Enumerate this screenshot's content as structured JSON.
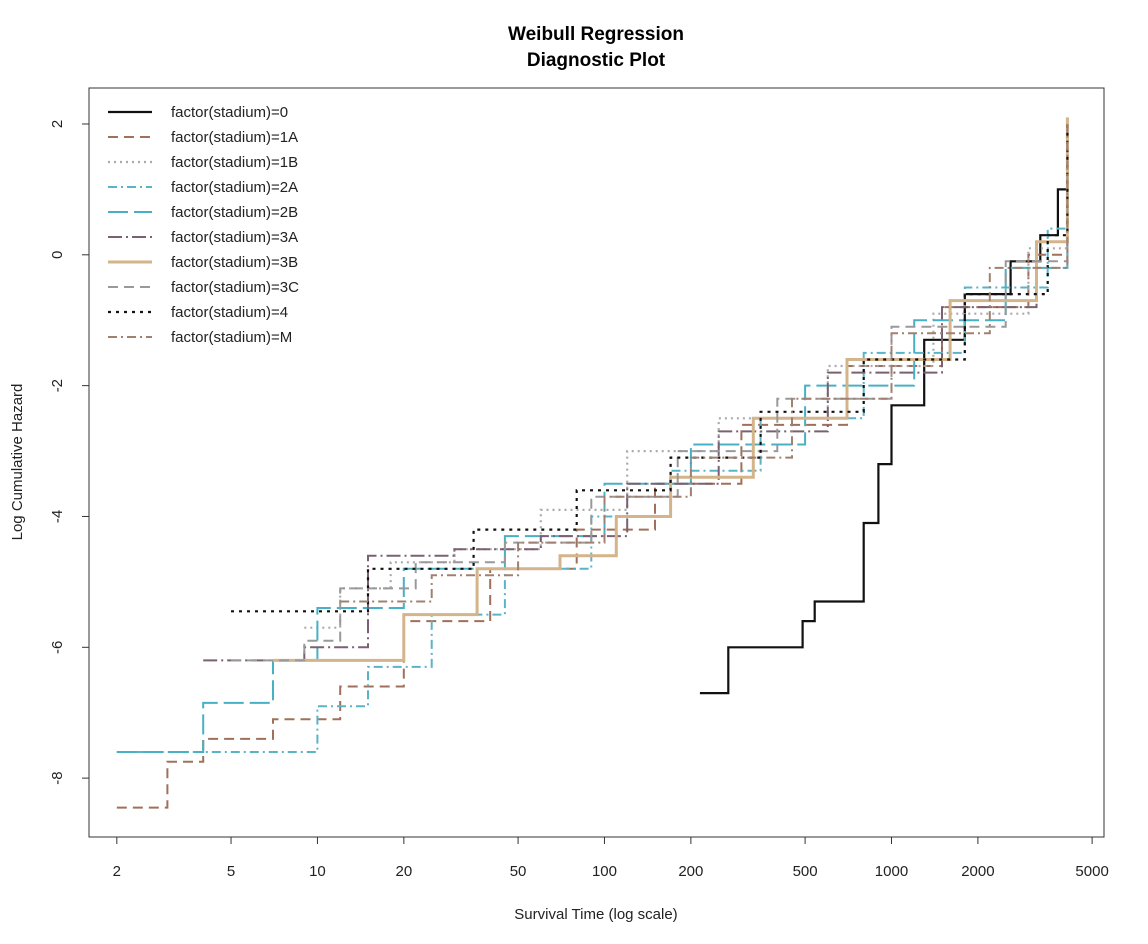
{
  "chart_data": {
    "type": "line",
    "title": "Weibull Regression",
    "subtitle": "Diagnostic Plot",
    "xlabel": "Survival Time (log scale)",
    "ylabel": "Log Cumulative Hazard",
    "xscale": "log",
    "xlim": [
      1.6,
      5500
    ],
    "ylim": [
      -8.9,
      2.55
    ],
    "xticks": [
      2,
      5,
      10,
      20,
      50,
      100,
      200,
      500,
      1000,
      2000,
      5000
    ],
    "xtick_labels": [
      "2",
      "5",
      "10",
      "20",
      "50",
      "100",
      "200",
      "500",
      "1000",
      "2000",
      "5000"
    ],
    "yticks": [
      -8,
      -6,
      -4,
      -2,
      0,
      2
    ],
    "ytick_labels": [
      "-8",
      "-6",
      "-4",
      "-2",
      "0",
      "2"
    ],
    "legend_position": "top-left",
    "series": [
      {
        "name": "factor(stadium)=0",
        "color": "#111111",
        "dash": "",
        "width": 2.2,
        "x": [
          215,
          270,
          490,
          540,
          740,
          800,
          900,
          1000,
          1300,
          1800,
          2600,
          3300,
          3800,
          4100
        ],
        "y": [
          -6.7,
          -6.0,
          -5.6,
          -5.3,
          -5.3,
          -4.1,
          -3.2,
          -2.3,
          -1.3,
          -0.6,
          -0.1,
          0.3,
          1.0,
          1.95
        ]
      },
      {
        "name": "factor(stadium)=1A",
        "color": "#a0705a",
        "dash": "10,6",
        "width": 2,
        "x": [
          2,
          3,
          4,
          7,
          12,
          20,
          40,
          80,
          150,
          300,
          700,
          1500,
          3000,
          4100
        ],
        "y": [
          -8.45,
          -7.75,
          -7.4,
          -7.1,
          -6.6,
          -5.6,
          -4.8,
          -4.2,
          -3.5,
          -2.6,
          -1.7,
          -0.8,
          0.0,
          2.0
        ]
      },
      {
        "name": "factor(stadium)=1B",
        "color": "#aaaaaa",
        "dash": "2,4",
        "width": 2.2,
        "x": [
          9,
          12,
          18,
          30,
          60,
          120,
          250,
          600,
          1400,
          3000,
          4100
        ],
        "y": [
          -5.7,
          -5.1,
          -4.7,
          -4.5,
          -3.9,
          -3.0,
          -2.5,
          -1.7,
          -0.9,
          0.1,
          2.0
        ]
      },
      {
        "name": "factor(stadium)=2A",
        "color": "#5ab4c8",
        "dash": "9,4,2,4",
        "width": 2,
        "x": [
          2,
          8,
          10,
          15,
          25,
          45,
          90,
          170,
          350,
          800,
          1800,
          3500,
          4100
        ],
        "y": [
          -7.6,
          -7.6,
          -6.9,
          -6.3,
          -5.5,
          -4.8,
          -4.0,
          -3.3,
          -2.5,
          -1.5,
          -0.5,
          0.4,
          1.95
        ]
      },
      {
        "name": "factor(stadium)=2B",
        "color": "#48b0c4",
        "dash": "20,6",
        "width": 2,
        "x": [
          2,
          4,
          7,
          10,
          20,
          45,
          100,
          200,
          500,
          1200,
          2500,
          4100
        ],
        "y": [
          -7.6,
          -6.85,
          -6.2,
          -5.4,
          -4.8,
          -4.3,
          -3.5,
          -2.9,
          -2.0,
          -1.0,
          -0.2,
          2.0
        ]
      },
      {
        "name": "factor(stadium)=3A",
        "color": "#7a6070",
        "dash": "14,4,2,4",
        "width": 2,
        "x": [
          4,
          9,
          15,
          30,
          60,
          120,
          250,
          600,
          1500,
          3200,
          4100
        ],
        "y": [
          -6.2,
          -6.0,
          -4.6,
          -4.5,
          -4.3,
          -3.5,
          -2.7,
          -1.8,
          -0.8,
          0.2,
          2.0
        ]
      },
      {
        "name": "factor(stadium)=3B",
        "color": "#d4b48a",
        "dash": "",
        "width": 3,
        "x": [
          7,
          20,
          36,
          70,
          110,
          170,
          330,
          700,
          1600,
          3200,
          4100
        ],
        "y": [
          -6.2,
          -5.5,
          -4.8,
          -4.6,
          -4.0,
          -3.4,
          -2.5,
          -1.6,
          -0.7,
          0.2,
          2.1
        ]
      },
      {
        "name": "factor(stadium)=3C",
        "color": "#999999",
        "dash": "10,6",
        "width": 2,
        "x": [
          5,
          9,
          12,
          22,
          45,
          90,
          180,
          400,
          1000,
          2500,
          4100
        ],
        "y": [
          -6.2,
          -5.9,
          -5.1,
          -4.7,
          -4.4,
          -3.7,
          -3.0,
          -2.2,
          -1.1,
          -0.1,
          2.0
        ]
      },
      {
        "name": "factor(stadium)=4",
        "color": "#111111",
        "dash": "3,5",
        "width": 2.2,
        "x": [
          5,
          15,
          35,
          80,
          170,
          350,
          800,
          1800,
          3500,
          4100
        ],
        "y": [
          -5.45,
          -4.8,
          -4.2,
          -3.6,
          -3.1,
          -2.4,
          -1.6,
          -0.6,
          0.3,
          2.0
        ]
      },
      {
        "name": "factor(stadium)=M",
        "color": "#a08070",
        "dash": "9,4,2,4",
        "width": 2,
        "x": [
          12,
          25,
          50,
          100,
          200,
          450,
          1000,
          2200,
          4100
        ],
        "y": [
          -5.3,
          -4.9,
          -4.4,
          -3.7,
          -3.1,
          -2.2,
          -1.2,
          -0.2,
          2.0
        ]
      }
    ]
  }
}
